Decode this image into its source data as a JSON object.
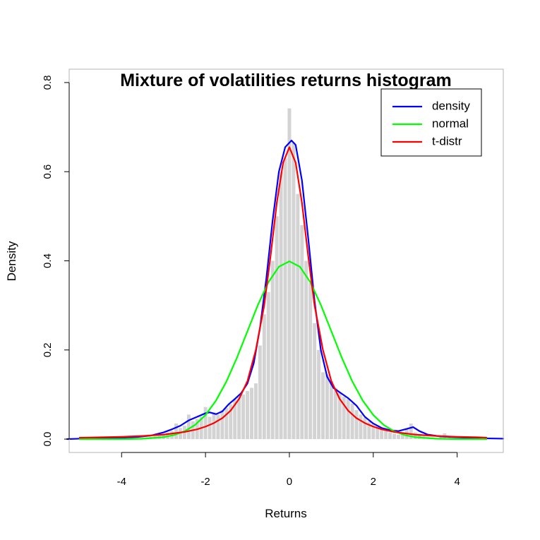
{
  "chart_data": {
    "type": "histogram",
    "title": "Mixture of volatilities returns histogram",
    "xlabel": "Returns",
    "ylabel": "Density",
    "xlim": [
      -5.25,
      5.1
    ],
    "ylim": [
      -0.03,
      0.83
    ],
    "x_ticks": [
      "-4",
      "-2",
      "0",
      "2",
      "4"
    ],
    "x_tick_values": [
      -4,
      -2,
      0,
      2,
      4
    ],
    "y_ticks": [
      "0.0",
      "0.2",
      "0.4",
      "0.6",
      "0.8"
    ],
    "y_tick_values": [
      0,
      0.2,
      0.4,
      0.6,
      0.8
    ],
    "grid": false,
    "legend_position": "top-right",
    "histogram": {
      "color": "#d3d3d3",
      "bin_width": 0.1,
      "bins": [
        [
          -3.5,
          0.003
        ],
        [
          -3.4,
          0.004
        ],
        [
          -3.3,
          0.005
        ],
        [
          -3.2,
          0.006
        ],
        [
          -3.1,
          0.007
        ],
        [
          -3.0,
          0.012
        ],
        [
          -2.9,
          0.015
        ],
        [
          -2.8,
          0.018
        ],
        [
          -2.7,
          0.035
        ],
        [
          -2.6,
          0.025
        ],
        [
          -2.5,
          0.03
        ],
        [
          -2.4,
          0.055
        ],
        [
          -2.3,
          0.04
        ],
        [
          -2.2,
          0.045
        ],
        [
          -2.1,
          0.05
        ],
        [
          -2.0,
          0.072
        ],
        [
          -1.9,
          0.05
        ],
        [
          -1.8,
          0.06
        ],
        [
          -1.7,
          0.055
        ],
        [
          -1.6,
          0.065
        ],
        [
          -1.5,
          0.07
        ],
        [
          -1.4,
          0.078
        ],
        [
          -1.3,
          0.09
        ],
        [
          -1.2,
          0.095
        ],
        [
          -1.1,
          0.1
        ],
        [
          -1.0,
          0.108
        ],
        [
          -0.9,
          0.115
        ],
        [
          -0.8,
          0.125
        ],
        [
          -0.7,
          0.21
        ],
        [
          -0.6,
          0.28
        ],
        [
          -0.5,
          0.33
        ],
        [
          -0.4,
          0.4
        ],
        [
          -0.3,
          0.5
        ],
        [
          -0.2,
          0.6
        ],
        [
          -0.1,
          0.63
        ],
        [
          0.0,
          0.742
        ],
        [
          0.1,
          0.665
        ],
        [
          0.2,
          0.55
        ],
        [
          0.3,
          0.48
        ],
        [
          0.4,
          0.4
        ],
        [
          0.5,
          0.35
        ],
        [
          0.6,
          0.26
        ],
        [
          0.7,
          0.2
        ],
        [
          0.8,
          0.15
        ],
        [
          0.9,
          0.145
        ],
        [
          1.0,
          0.13
        ],
        [
          1.1,
          0.115
        ],
        [
          1.2,
          0.105
        ],
        [
          1.3,
          0.095
        ],
        [
          1.4,
          0.09
        ],
        [
          1.5,
          0.08
        ],
        [
          1.6,
          0.065
        ],
        [
          1.7,
          0.055
        ],
        [
          1.8,
          0.048
        ],
        [
          1.9,
          0.04
        ],
        [
          2.0,
          0.035
        ],
        [
          2.1,
          0.03
        ],
        [
          2.2,
          0.025
        ],
        [
          2.3,
          0.02
        ],
        [
          2.4,
          0.015
        ],
        [
          2.5,
          0.012
        ],
        [
          2.6,
          0.01
        ],
        [
          2.7,
          0.012
        ],
        [
          2.8,
          0.022
        ],
        [
          2.9,
          0.035
        ],
        [
          3.0,
          0.015
        ],
        [
          3.1,
          0.008
        ],
        [
          3.2,
          0.006
        ],
        [
          3.3,
          0.005
        ],
        [
          3.4,
          0.004
        ],
        [
          3.5,
          0.003
        ],
        [
          3.6,
          0.004
        ],
        [
          3.7,
          0.013
        ],
        [
          3.8,
          0.003
        ]
      ]
    },
    "series": [
      {
        "name": "density",
        "color": "#0000ff",
        "points": [
          [
            -5.3,
            0.0
          ],
          [
            -5.0,
            0.001
          ],
          [
            -4.5,
            0.002
          ],
          [
            -4.0,
            0.003
          ],
          [
            -3.6,
            0.005
          ],
          [
            -3.3,
            0.008
          ],
          [
            -3.0,
            0.015
          ],
          [
            -2.8,
            0.022
          ],
          [
            -2.6,
            0.03
          ],
          [
            -2.4,
            0.042
          ],
          [
            -2.2,
            0.05
          ],
          [
            -2.0,
            0.058
          ],
          [
            -1.9,
            0.06
          ],
          [
            -1.75,
            0.056
          ],
          [
            -1.6,
            0.062
          ],
          [
            -1.45,
            0.078
          ],
          [
            -1.3,
            0.09
          ],
          [
            -1.15,
            0.103
          ],
          [
            -1.0,
            0.125
          ],
          [
            -0.85,
            0.17
          ],
          [
            -0.7,
            0.25
          ],
          [
            -0.55,
            0.36
          ],
          [
            -0.4,
            0.49
          ],
          [
            -0.25,
            0.6
          ],
          [
            -0.1,
            0.655
          ],
          [
            0.05,
            0.67
          ],
          [
            0.15,
            0.66
          ],
          [
            0.3,
            0.58
          ],
          [
            0.45,
            0.45
          ],
          [
            0.6,
            0.31
          ],
          [
            0.75,
            0.2
          ],
          [
            0.9,
            0.14
          ],
          [
            1.05,
            0.115
          ],
          [
            1.2,
            0.105
          ],
          [
            1.4,
            0.092
          ],
          [
            1.6,
            0.075
          ],
          [
            1.8,
            0.05
          ],
          [
            2.0,
            0.035
          ],
          [
            2.2,
            0.025
          ],
          [
            2.4,
            0.02
          ],
          [
            2.6,
            0.018
          ],
          [
            2.8,
            0.023
          ],
          [
            2.95,
            0.027
          ],
          [
            3.1,
            0.018
          ],
          [
            3.3,
            0.01
          ],
          [
            3.6,
            0.006
          ],
          [
            4.0,
            0.004
          ],
          [
            4.5,
            0.002
          ],
          [
            5.1,
            0.001
          ]
        ]
      },
      {
        "name": "normal",
        "color": "#00ff00",
        "points": [
          [
            -5.0,
            0.0
          ],
          [
            -4.5,
            0.0
          ],
          [
            -4.0,
            0.0001
          ],
          [
            -3.5,
            0.0009
          ],
          [
            -3.0,
            0.0044
          ],
          [
            -2.75,
            0.0091
          ],
          [
            -2.5,
            0.0175
          ],
          [
            -2.25,
            0.0317
          ],
          [
            -2.0,
            0.054
          ],
          [
            -1.75,
            0.0863
          ],
          [
            -1.5,
            0.1295
          ],
          [
            -1.25,
            0.1826
          ],
          [
            -1.0,
            0.242
          ],
          [
            -0.75,
            0.3011
          ],
          [
            -0.5,
            0.3521
          ],
          [
            -0.25,
            0.3867
          ],
          [
            0.0,
            0.3989
          ],
          [
            0.25,
            0.3867
          ],
          [
            0.5,
            0.3521
          ],
          [
            0.75,
            0.3011
          ],
          [
            1.0,
            0.242
          ],
          [
            1.25,
            0.1826
          ],
          [
            1.5,
            0.1295
          ],
          [
            1.75,
            0.0863
          ],
          [
            2.0,
            0.054
          ],
          [
            2.25,
            0.0317
          ],
          [
            2.5,
            0.0175
          ],
          [
            2.75,
            0.0091
          ],
          [
            3.0,
            0.0044
          ],
          [
            3.5,
            0.0009
          ],
          [
            4.0,
            0.0001
          ],
          [
            4.5,
            0.0
          ],
          [
            4.7,
            0.0
          ]
        ]
      },
      {
        "name": "t-distr",
        "color": "#ff0000",
        "points": [
          [
            -5.0,
            0.003
          ],
          [
            -4.5,
            0.004
          ],
          [
            -4.0,
            0.005
          ],
          [
            -3.5,
            0.007
          ],
          [
            -3.0,
            0.01
          ],
          [
            -2.5,
            0.016
          ],
          [
            -2.2,
            0.022
          ],
          [
            -2.0,
            0.028
          ],
          [
            -1.8,
            0.036
          ],
          [
            -1.6,
            0.047
          ],
          [
            -1.4,
            0.064
          ],
          [
            -1.2,
            0.09
          ],
          [
            -1.0,
            0.13
          ],
          [
            -0.8,
            0.2
          ],
          [
            -0.6,
            0.3
          ],
          [
            -0.45,
            0.41
          ],
          [
            -0.3,
            0.53
          ],
          [
            -0.15,
            0.62
          ],
          [
            0.0,
            0.655
          ],
          [
            0.15,
            0.62
          ],
          [
            0.3,
            0.53
          ],
          [
            0.45,
            0.41
          ],
          [
            0.6,
            0.3
          ],
          [
            0.8,
            0.2
          ],
          [
            1.0,
            0.13
          ],
          [
            1.2,
            0.09
          ],
          [
            1.4,
            0.064
          ],
          [
            1.6,
            0.047
          ],
          [
            1.8,
            0.036
          ],
          [
            2.0,
            0.028
          ],
          [
            2.2,
            0.022
          ],
          [
            2.5,
            0.016
          ],
          [
            3.0,
            0.01
          ],
          [
            3.5,
            0.007
          ],
          [
            4.0,
            0.005
          ],
          [
            4.5,
            0.004
          ],
          [
            4.7,
            0.003
          ]
        ]
      }
    ]
  }
}
